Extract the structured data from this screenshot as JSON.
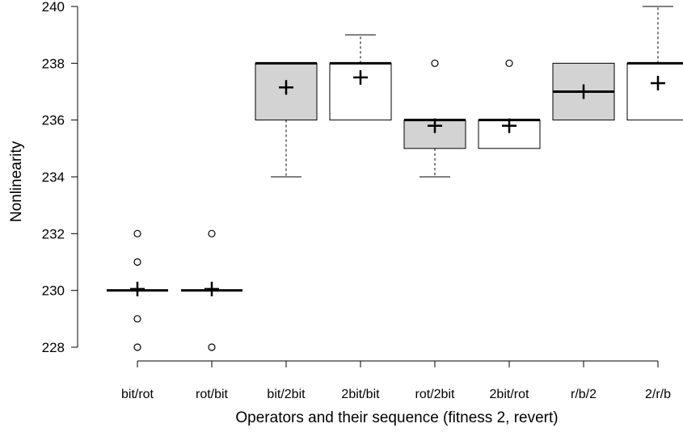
{
  "chart_data": {
    "type": "boxplot",
    "xlabel": "Operators and their sequence (fitness 2, revert)",
    "ylabel": "Nonlinearity",
    "ylim": [
      228,
      240
    ],
    "yticks": [
      228,
      230,
      232,
      234,
      236,
      238,
      240
    ],
    "categories": [
      "bit/rot",
      "rot/bit",
      "bit/2bit",
      "2bit/bit",
      "rot/2bit",
      "2bit/rot",
      "r/b/2",
      "2/r/b"
    ],
    "boxes": [
      {
        "category": "bit/rot",
        "fill": "#ffffff",
        "q1": 230,
        "median": 230,
        "q3": 230,
        "whisker_low": 230,
        "whisker_high": 230,
        "mean": 230.05,
        "outliers": [
          228,
          229,
          231,
          232
        ]
      },
      {
        "category": "rot/bit",
        "fill": "#ffffff",
        "q1": 230,
        "median": 230,
        "q3": 230,
        "whisker_low": 230,
        "whisker_high": 230,
        "mean": 230.05,
        "outliers": [
          228,
          232
        ]
      },
      {
        "category": "bit/2bit",
        "fill": "#d3d3d3",
        "q1": 236,
        "median": 238,
        "q3": 238,
        "whisker_low": 234,
        "whisker_high": 238,
        "mean": 237.15,
        "outliers": []
      },
      {
        "category": "2bit/bit",
        "fill": "#ffffff",
        "q1": 236,
        "median": 238,
        "q3": 238,
        "whisker_low": 236,
        "whisker_high": 239,
        "mean": 237.5,
        "outliers": []
      },
      {
        "category": "rot/2bit",
        "fill": "#d3d3d3",
        "q1": 235,
        "median": 236,
        "q3": 236,
        "whisker_low": 234,
        "whisker_high": 236,
        "mean": 235.8,
        "outliers": [
          238
        ]
      },
      {
        "category": "2bit/rot",
        "fill": "#ffffff",
        "q1": 235,
        "median": 236,
        "q3": 236,
        "whisker_low": 235,
        "whisker_high": 236,
        "mean": 235.8,
        "outliers": [
          238
        ]
      },
      {
        "category": "r/b/2",
        "fill": "#d3d3d3",
        "q1": 236,
        "median": 237,
        "q3": 238,
        "whisker_low": 236,
        "whisker_high": 238,
        "mean": 237.0,
        "outliers": []
      },
      {
        "category": "2/r/b",
        "fill": "#ffffff",
        "q1": 236,
        "median": 238,
        "q3": 238,
        "whisker_low": 236,
        "whisker_high": 240,
        "mean": 237.3,
        "outliers": []
      }
    ]
  }
}
